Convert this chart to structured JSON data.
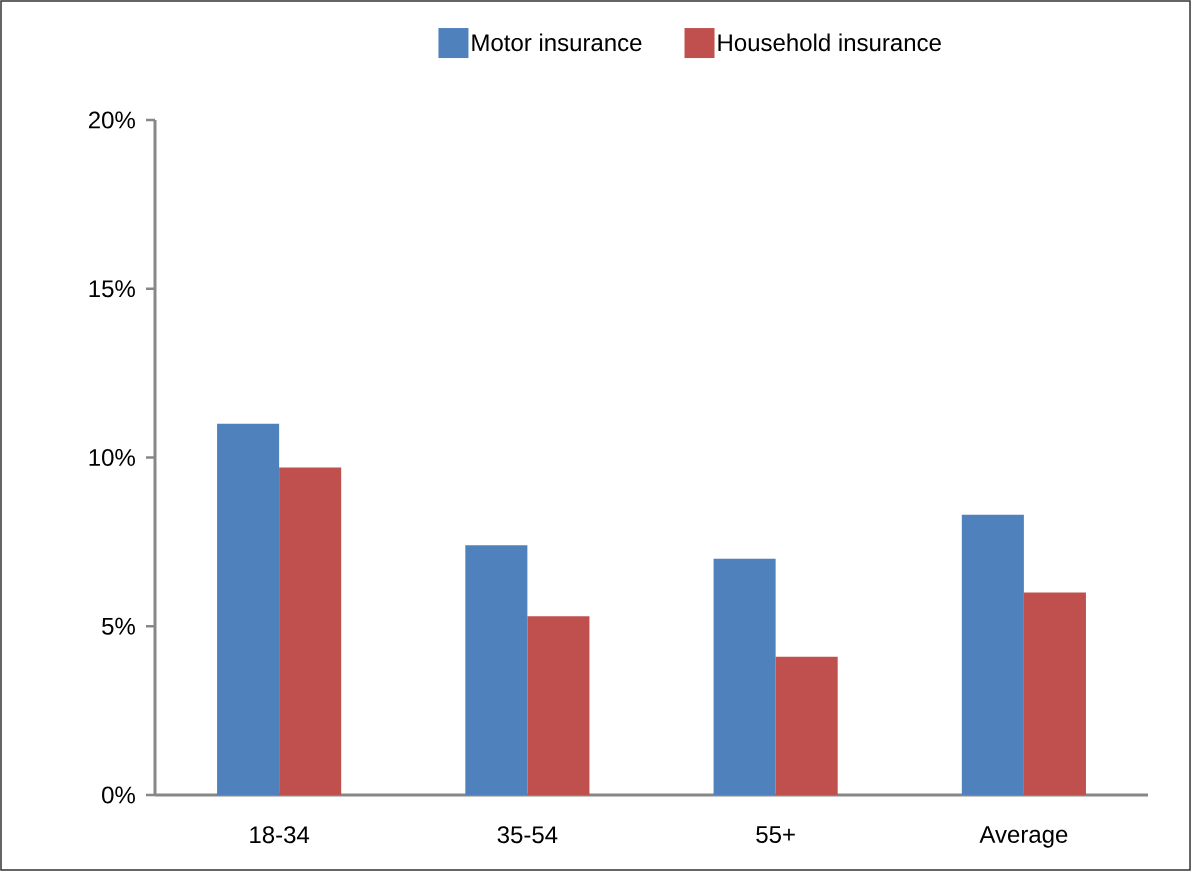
{
  "chart_data": {
    "type": "bar",
    "categories": [
      "18-34",
      "35-54",
      "55+",
      "Average"
    ],
    "series": [
      {
        "name": "Motor insurance",
        "color": "#4f81bd",
        "values": [
          11.0,
          7.4,
          7.0,
          8.3
        ]
      },
      {
        "name": "Household insurance",
        "color": "#c0504d",
        "values": [
          9.7,
          5.3,
          4.1,
          6.0
        ]
      }
    ],
    "ylim": [
      0,
      20
    ],
    "yticks": [
      {
        "value": 0,
        "label": "0%"
      },
      {
        "value": 5,
        "label": "5%"
      },
      {
        "value": 10,
        "label": "10%"
      },
      {
        "value": 15,
        "label": "15%"
      },
      {
        "value": 20,
        "label": "20%"
      }
    ],
    "legend": "top"
  }
}
